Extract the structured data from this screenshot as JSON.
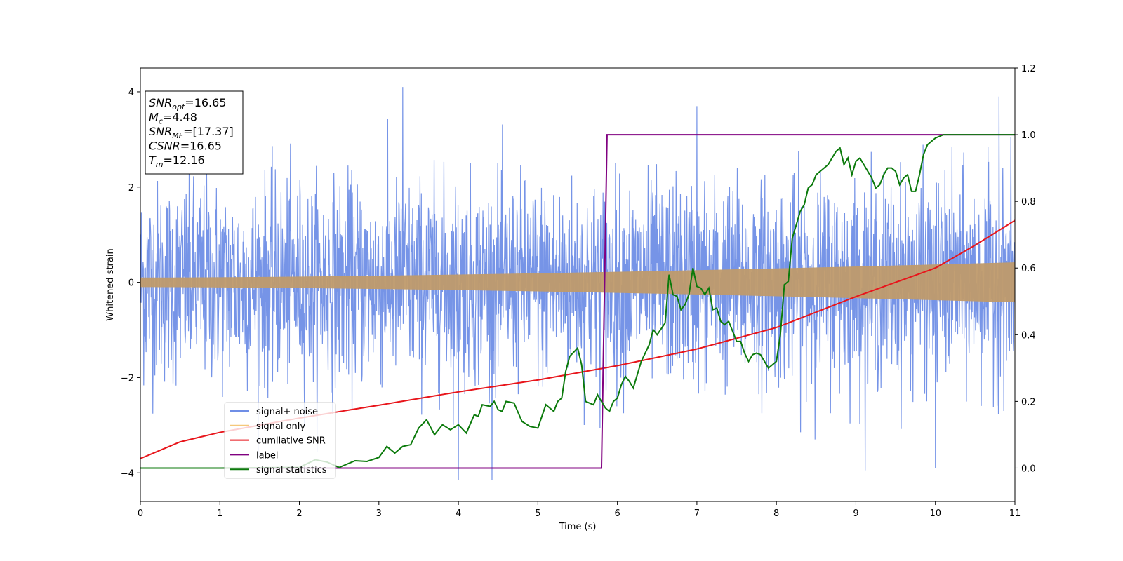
{
  "chart_data": {
    "type": "line",
    "xlabel": "Time (s)",
    "ylabel": "Whitened strain",
    "xlim": [
      0,
      11
    ],
    "ylim": [
      -4.6,
      4.5
    ],
    "y2lim": [
      -0.1,
      1.2
    ],
    "xticks": [
      0,
      1,
      2,
      3,
      4,
      5,
      6,
      7,
      8,
      9,
      10,
      11
    ],
    "yticks": [
      -4,
      -2,
      0,
      2,
      4
    ],
    "y2ticks": [
      "0.0",
      "0.2",
      "0.4",
      "0.6",
      "0.8",
      "1.0",
      "1.2"
    ],
    "legend_position": "lower-left",
    "info_box": [
      {
        "base": "SNR",
        "sub": "opt",
        "rest": "=16.65"
      },
      {
        "base": "M",
        "sub": "c",
        "rest": "=4.48"
      },
      {
        "base": "SNR",
        "sub": "MF",
        "rest": "=[17.37]"
      },
      {
        "base": "CSNR",
        "sub": "",
        "rest": "=16.65"
      },
      {
        "base": "T",
        "sub": "m",
        "rest": "=12.16"
      }
    ],
    "series": [
      {
        "name": "signal+ noise",
        "color": "#6f8ee6",
        "axis": "left",
        "description_values": {
          "typical_amplitude": 2.0,
          "max": 4.1,
          "min": -4.15
        }
      },
      {
        "name": "signal only",
        "color": "#f5c87a",
        "axis": "left",
        "envelope": {
          "x": [
            0,
            11
          ],
          "amplitude": [
            0.1,
            0.42
          ]
        }
      },
      {
        "name": "cumilative SNR",
        "color": "#e8151b",
        "axis": "left",
        "x": [
          0,
          0.5,
          1,
          2,
          3,
          4,
          5,
          6,
          7,
          8,
          9,
          10,
          10.5,
          11
        ],
        "y": [
          -3.7,
          -3.35,
          -3.15,
          -2.85,
          -2.58,
          -2.3,
          -2.05,
          -1.75,
          -1.4,
          -0.95,
          -0.3,
          0.3,
          0.78,
          1.3
        ]
      },
      {
        "name": "label",
        "color": "#800080",
        "axis": "right",
        "x": [
          0,
          5.8,
          5.87,
          11
        ],
        "y": [
          0,
          0,
          1,
          1
        ]
      },
      {
        "name": "signal statistics",
        "color": "#0b7a0b",
        "axis": "right",
        "x": [
          0,
          1,
          2,
          2.2,
          2.35,
          2.5,
          2.7,
          2.85,
          3.0,
          3.1,
          3.2,
          3.3,
          3.4,
          3.5,
          3.6,
          3.7,
          3.8,
          3.9,
          4.0,
          4.1,
          4.2,
          4.25,
          4.3,
          4.4,
          4.45,
          4.5,
          4.55,
          4.6,
          4.7,
          4.8,
          4.9,
          5.0,
          5.1,
          5.2,
          5.25,
          5.3,
          5.35,
          5.4,
          5.5,
          5.55,
          5.6,
          5.7,
          5.75,
          5.8,
          5.85,
          5.9,
          5.95,
          6.0,
          6.05,
          6.1,
          6.15,
          6.2,
          6.3,
          6.4,
          6.45,
          6.5,
          6.6,
          6.65,
          6.7,
          6.75,
          6.8,
          6.85,
          6.9,
          6.95,
          7.0,
          7.05,
          7.1,
          7.15,
          7.2,
          7.25,
          7.3,
          7.35,
          7.4,
          7.45,
          7.5,
          7.55,
          7.6,
          7.65,
          7.7,
          7.75,
          7.8,
          7.9,
          8.0,
          8.05,
          8.1,
          8.15,
          8.2,
          8.25,
          8.3,
          8.35,
          8.4,
          8.45,
          8.5,
          8.6,
          8.65,
          8.7,
          8.75,
          8.8,
          8.85,
          8.9,
          8.95,
          9.0,
          9.05,
          9.1,
          9.15,
          9.2,
          9.25,
          9.3,
          9.35,
          9.4,
          9.45,
          9.5,
          9.55,
          9.6,
          9.65,
          9.7,
          9.75,
          9.8,
          9.85,
          9.9,
          9.95,
          10.0,
          10.1,
          10.2,
          10.3,
          10.5,
          11
        ],
        "y": [
          0,
          0,
          0.002,
          0.025,
          0.018,
          0.002,
          0.022,
          0.02,
          0.032,
          0.065,
          0.045,
          0.065,
          0.07,
          0.12,
          0.145,
          0.1,
          0.13,
          0.115,
          0.13,
          0.105,
          0.16,
          0.155,
          0.19,
          0.185,
          0.2,
          0.175,
          0.17,
          0.2,
          0.195,
          0.14,
          0.125,
          0.12,
          0.19,
          0.17,
          0.2,
          0.21,
          0.29,
          0.335,
          0.36,
          0.31,
          0.2,
          0.19,
          0.22,
          0.2,
          0.18,
          0.17,
          0.2,
          0.21,
          0.25,
          0.275,
          0.26,
          0.24,
          0.32,
          0.37,
          0.415,
          0.4,
          0.435,
          0.58,
          0.52,
          0.515,
          0.475,
          0.49,
          0.52,
          0.6,
          0.545,
          0.54,
          0.52,
          0.54,
          0.475,
          0.48,
          0.44,
          0.43,
          0.44,
          0.41,
          0.38,
          0.38,
          0.345,
          0.32,
          0.34,
          0.345,
          0.34,
          0.3,
          0.32,
          0.4,
          0.55,
          0.56,
          0.69,
          0.73,
          0.77,
          0.79,
          0.84,
          0.85,
          0.88,
          0.9,
          0.91,
          0.93,
          0.95,
          0.96,
          0.91,
          0.93,
          0.88,
          0.92,
          0.93,
          0.91,
          0.89,
          0.87,
          0.84,
          0.85,
          0.88,
          0.9,
          0.9,
          0.89,
          0.85,
          0.87,
          0.88,
          0.83,
          0.83,
          0.88,
          0.94,
          0.97,
          0.98,
          0.99,
          1.0,
          1.0,
          1.0,
          1.0,
          1.0
        ]
      }
    ]
  }
}
